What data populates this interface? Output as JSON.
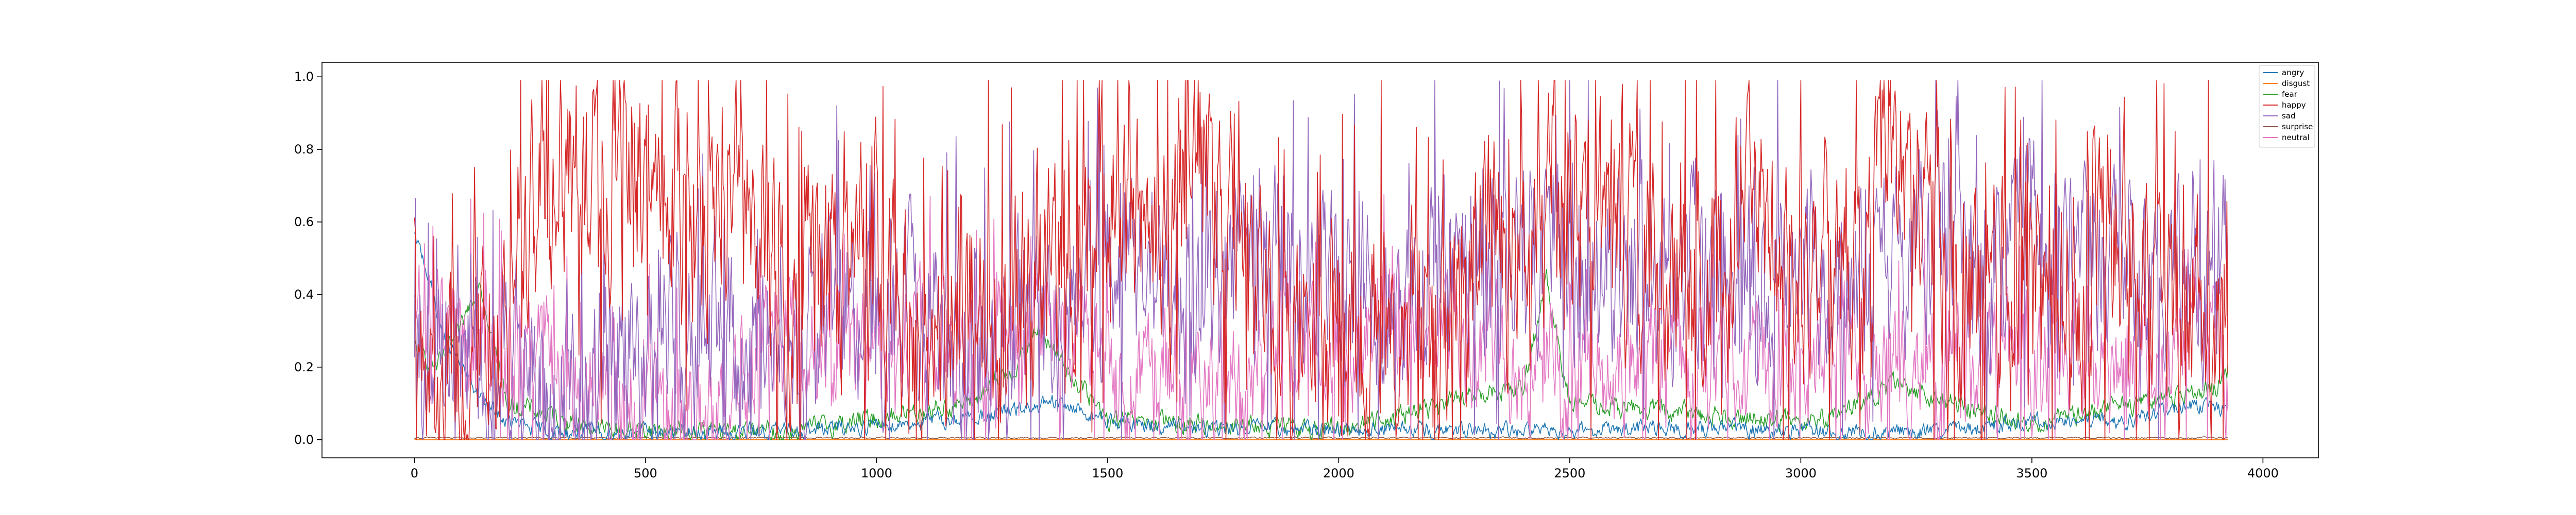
{
  "chart_data": {
    "type": "line",
    "title": "",
    "xlabel": "",
    "ylabel": "",
    "xlim": [
      -200,
      4120
    ],
    "ylim": [
      -0.05,
      1.04
    ],
    "n_points": 3925,
    "xticks": [
      0,
      500,
      1000,
      1500,
      2000,
      2500,
      3000,
      3500,
      4000
    ],
    "xtick_labels": [
      "0",
      "500",
      "1000",
      "1500",
      "2000",
      "2500",
      "3000",
      "3500",
      "4000"
    ],
    "yticks": [
      0.0,
      0.2,
      0.4,
      0.6,
      0.8,
      1.0
    ],
    "ytick_labels": [
      "0.0",
      "0.2",
      "0.4",
      "0.6",
      "0.8",
      "1.0"
    ],
    "legend_position": "top-right",
    "grid": false,
    "series": [
      {
        "name": "angry",
        "color": "#1f77b4",
        "x": [
          0,
          20,
          60,
          100,
          150,
          200,
          300,
          500,
          700,
          900,
          1100,
          1200,
          1300,
          1400,
          1500,
          1700,
          1900,
          2100,
          2300,
          2500,
          2700,
          2900,
          3100,
          3300,
          3500,
          3700,
          3850,
          3925
        ],
        "values": [
          0.55,
          0.5,
          0.3,
          0.2,
          0.1,
          0.05,
          0.02,
          0.02,
          0.02,
          0.03,
          0.05,
          0.06,
          0.08,
          0.1,
          0.05,
          0.03,
          0.03,
          0.03,
          0.02,
          0.03,
          0.03,
          0.03,
          0.02,
          0.02,
          0.05,
          0.05,
          0.1,
          0.08
        ]
      },
      {
        "name": "disgust",
        "color": "#ff7f0e",
        "x": [
          0,
          3925
        ],
        "values": [
          0.0,
          0.0
        ]
      },
      {
        "name": "fear",
        "color": "#2ca02c",
        "x": [
          0,
          50,
          100,
          140,
          200,
          400,
          800,
          1200,
          1300,
          1350,
          1500,
          2000,
          2400,
          2450,
          2500,
          3000,
          3100,
          3200,
          3500,
          3900,
          3925
        ],
        "values": [
          0.25,
          0.2,
          0.3,
          0.45,
          0.1,
          0.03,
          0.02,
          0.1,
          0.2,
          0.3,
          0.05,
          0.03,
          0.15,
          0.43,
          0.1,
          0.05,
          0.08,
          0.15,
          0.04,
          0.15,
          0.2
        ]
      },
      {
        "name": "happy",
        "color": "#d62728",
        "x": [
          0,
          100,
          200,
          300,
          400,
          500,
          600,
          700,
          800,
          900,
          1000,
          1100,
          1200,
          1300,
          1400,
          1500,
          1600,
          1700,
          1800,
          1900,
          2000,
          2100,
          2200,
          2300,
          2400,
          2500,
          2600,
          2700,
          2800,
          2900,
          3000,
          3100,
          3200,
          3300,
          3400,
          3500,
          3600,
          3700,
          3800,
          3900,
          3925
        ],
        "values": [
          0.1,
          0.15,
          0.4,
          0.75,
          0.7,
          0.8,
          0.6,
          0.85,
          0.35,
          0.45,
          0.5,
          0.25,
          0.4,
          0.35,
          0.45,
          0.7,
          0.5,
          0.8,
          0.4,
          0.3,
          0.3,
          0.35,
          0.25,
          0.5,
          0.6,
          0.7,
          0.5,
          0.45,
          0.5,
          0.55,
          0.5,
          0.45,
          0.85,
          0.5,
          0.3,
          0.45,
          0.45,
          0.6,
          0.4,
          0.3,
          0.2
        ]
      },
      {
        "name": "sad",
        "color": "#9467bd",
        "x": [
          0,
          100,
          200,
          300,
          400,
          500,
          600,
          700,
          800,
          900,
          1000,
          1100,
          1200,
          1300,
          1400,
          1500,
          1600,
          1700,
          1800,
          1900,
          2000,
          2100,
          2200,
          2300,
          2400,
          2500,
          2600,
          2700,
          2800,
          2900,
          3000,
          3100,
          3200,
          3300,
          3400,
          3500,
          3600,
          3700,
          3800,
          3900,
          3925
        ],
        "values": [
          0.15,
          0.35,
          0.2,
          0.1,
          0.15,
          0.3,
          0.35,
          0.2,
          0.25,
          0.35,
          0.3,
          0.35,
          0.25,
          0.3,
          0.35,
          0.45,
          0.45,
          0.35,
          0.5,
          0.5,
          0.45,
          0.4,
          0.45,
          0.45,
          0.55,
          0.5,
          0.45,
          0.45,
          0.4,
          0.45,
          0.45,
          0.45,
          0.45,
          0.6,
          0.5,
          0.55,
          0.55,
          0.5,
          0.45,
          0.45,
          0.55
        ]
      },
      {
        "name": "surprise",
        "color": "#8c564b",
        "x": [
          0,
          3925
        ],
        "values": [
          0.005,
          0.005
        ]
      },
      {
        "name": "neutral",
        "color": "#e377c2",
        "x": [
          0,
          100,
          200,
          300,
          400,
          500,
          600,
          700,
          800,
          900,
          1000,
          1100,
          1200,
          1300,
          1400,
          1500,
          1600,
          1700,
          1800,
          1900,
          2000,
          2100,
          2200,
          2300,
          2400,
          2500,
          2600,
          2700,
          2800,
          2900,
          3000,
          3100,
          3200,
          3300,
          3400,
          3500,
          3600,
          3700,
          3800,
          3900,
          3925
        ],
        "values": [
          0.3,
          0.3,
          0.25,
          0.2,
          0.15,
          0.1,
          0.1,
          0.1,
          0.3,
          0.25,
          0.25,
          0.3,
          0.25,
          0.3,
          0.3,
          0.2,
          0.15,
          0.15,
          0.2,
          0.25,
          0.25,
          0.3,
          0.3,
          0.25,
          0.2,
          0.15,
          0.2,
          0.25,
          0.2,
          0.2,
          0.2,
          0.25,
          0.2,
          0.15,
          0.25,
          0.2,
          0.2,
          0.15,
          0.25,
          0.3,
          0.2
        ]
      }
    ]
  }
}
